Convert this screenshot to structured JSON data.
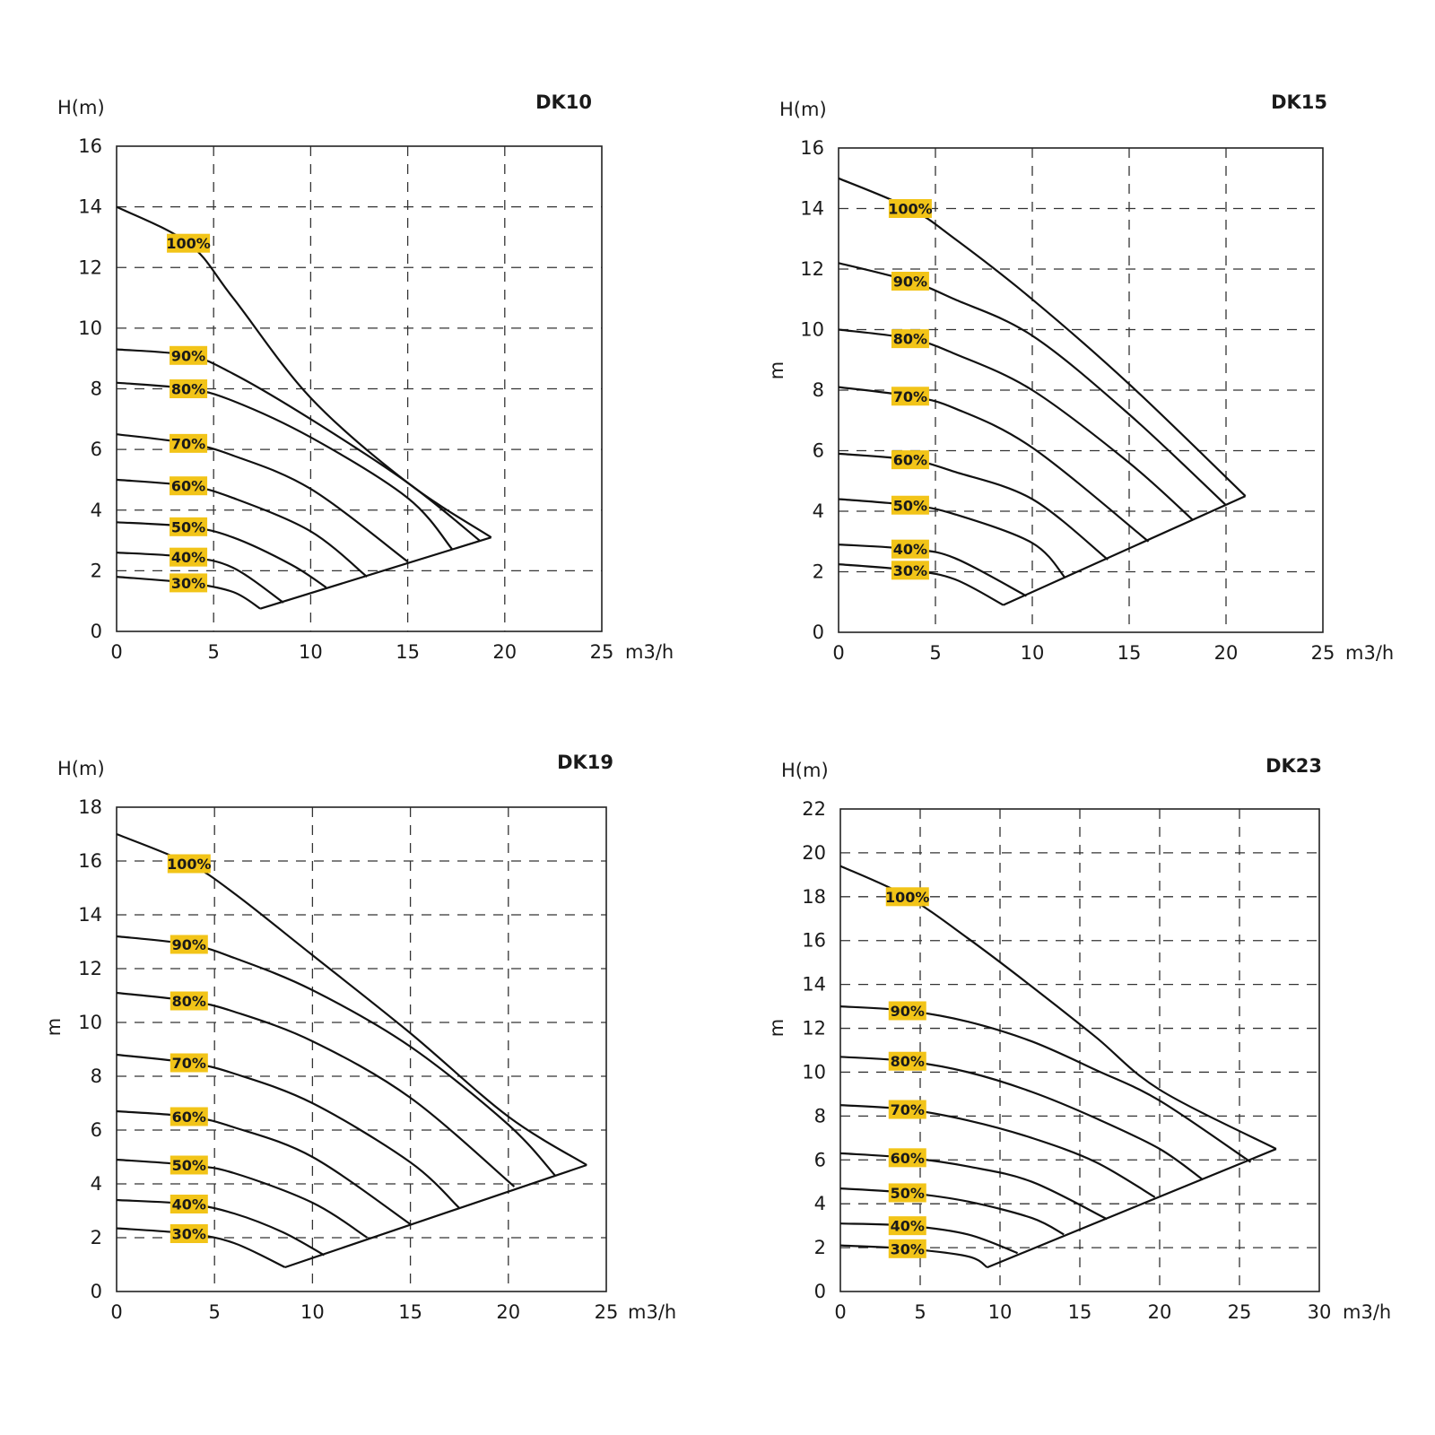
{
  "colors": {
    "badge": "#f2c418",
    "line": "#111111",
    "grid": "#333333",
    "frame": "#222222"
  },
  "chart_data": [
    {
      "type": "line",
      "title": "DK10",
      "ylabel_top": "H(m)",
      "ylabel_side": "",
      "xunit": "m3/h",
      "xlim": [
        0,
        25
      ],
      "ylim": [
        0,
        16
      ],
      "xticks": [
        "0",
        "5",
        "10",
        "15",
        "20",
        "25"
      ],
      "yticks": [
        "0",
        "2",
        "4",
        "6",
        "8",
        "10",
        "12",
        "14",
        "16"
      ],
      "grid": true,
      "series": [
        {
          "name": "100%",
          "points": [
            [
              0,
              14
            ],
            [
              3.7,
              12.8
            ],
            [
              6,
              11
            ],
            [
              10,
              7.7
            ],
            [
              15,
              4.9
            ],
            [
              19.3,
              3.1
            ]
          ]
        },
        {
          "name": "90%",
          "points": [
            [
              0,
              9.3
            ],
            [
              3.7,
              9.1
            ],
            [
              6,
              8.5
            ],
            [
              10,
              7.0
            ],
            [
              15,
              4.9
            ],
            [
              18.7,
              3.0
            ]
          ]
        },
        {
          "name": "80%",
          "points": [
            [
              0,
              8.2
            ],
            [
              3.7,
              8.0
            ],
            [
              6,
              7.6
            ],
            [
              10,
              6.4
            ],
            [
              15,
              4.4
            ],
            [
              17.3,
              2.7
            ]
          ]
        },
        {
          "name": "70%",
          "points": [
            [
              0,
              6.5
            ],
            [
              3.7,
              6.2
            ],
            [
              6,
              5.8
            ],
            [
              10,
              4.7
            ],
            [
              15,
              2.3
            ]
          ]
        },
        {
          "name": "60%",
          "points": [
            [
              0,
              5.0
            ],
            [
              3.7,
              4.8
            ],
            [
              6,
              4.4
            ],
            [
              10,
              3.3
            ],
            [
              12.9,
              1.8
            ]
          ]
        },
        {
          "name": "50%",
          "points": [
            [
              0,
              3.6
            ],
            [
              3.7,
              3.45
            ],
            [
              6,
              3.1
            ],
            [
              9,
              2.2
            ],
            [
              10.8,
              1.45
            ]
          ]
        },
        {
          "name": "40%",
          "points": [
            [
              0,
              2.6
            ],
            [
              3.7,
              2.45
            ],
            [
              6,
              2.1
            ],
            [
              8.6,
              0.95
            ]
          ]
        },
        {
          "name": "30%",
          "points": [
            [
              0,
              1.8
            ],
            [
              3.7,
              1.6
            ],
            [
              6,
              1.3
            ],
            [
              7.4,
              0.75
            ]
          ]
        }
      ],
      "boundary": [
        [
          7.4,
          0.75
        ],
        [
          19.3,
          3.1
        ]
      ]
    },
    {
      "type": "line",
      "title": "DK15",
      "ylabel_top": "H(m)",
      "ylabel_side": "m",
      "xunit": "m3/h",
      "xlim": [
        0,
        25
      ],
      "ylim": [
        0,
        16
      ],
      "xticks": [
        "0",
        "5",
        "10",
        "15",
        "20",
        "25"
      ],
      "yticks": [
        "0",
        "2",
        "4",
        "6",
        "8",
        "10",
        "12",
        "14",
        "16"
      ],
      "grid": true,
      "series": [
        {
          "name": "100%",
          "points": [
            [
              0,
              15
            ],
            [
              3.7,
              14.0
            ],
            [
              6,
              13.0
            ],
            [
              10,
              11.0
            ],
            [
              15,
              8.2
            ],
            [
              21,
              4.5
            ]
          ]
        },
        {
          "name": "90%",
          "points": [
            [
              0,
              12.2
            ],
            [
              3.7,
              11.6
            ],
            [
              6,
              11.0
            ],
            [
              10,
              9.8
            ],
            [
              15,
              7.2
            ],
            [
              20,
              4.2
            ]
          ]
        },
        {
          "name": "80%",
          "points": [
            [
              0,
              10
            ],
            [
              3.7,
              9.7
            ],
            [
              6,
              9.2
            ],
            [
              10,
              8.0
            ],
            [
              15,
              5.6
            ],
            [
              18.3,
              3.7
            ]
          ]
        },
        {
          "name": "70%",
          "points": [
            [
              0,
              8.1
            ],
            [
              3.7,
              7.8
            ],
            [
              6,
              7.4
            ],
            [
              10,
              6.1
            ],
            [
              16,
              3.0
            ]
          ]
        },
        {
          "name": "60%",
          "points": [
            [
              0,
              5.9
            ],
            [
              3.7,
              5.7
            ],
            [
              6,
              5.3
            ],
            [
              10,
              4.4
            ],
            [
              13.9,
              2.4
            ]
          ]
        },
        {
          "name": "50%",
          "points": [
            [
              0,
              4.4
            ],
            [
              3.7,
              4.2
            ],
            [
              6,
              3.9
            ],
            [
              10,
              2.95
            ],
            [
              11.7,
              1.8
            ]
          ]
        },
        {
          "name": "40%",
          "points": [
            [
              0,
              2.9
            ],
            [
              3.7,
              2.75
            ],
            [
              6,
              2.45
            ],
            [
              9.7,
              1.2
            ]
          ]
        },
        {
          "name": "30%",
          "points": [
            [
              0,
              2.25
            ],
            [
              3.7,
              2.05
            ],
            [
              6,
              1.75
            ],
            [
              8.5,
              0.9
            ]
          ]
        }
      ],
      "boundary": [
        [
          8.5,
          0.9
        ],
        [
          21,
          4.5
        ]
      ]
    },
    {
      "type": "line",
      "title": "DK19",
      "ylabel_top": "H(m)",
      "ylabel_side": "m",
      "xunit": "m3/h",
      "xlim": [
        0,
        25
      ],
      "ylim": [
        0,
        18
      ],
      "xticks": [
        "0",
        "5",
        "10",
        "15",
        "20",
        "25"
      ],
      "yticks": [
        "0",
        "2",
        "4",
        "6",
        "8",
        "10",
        "12",
        "14",
        "16",
        "18"
      ],
      "grid": true,
      "series": [
        {
          "name": "100%",
          "points": [
            [
              0,
              17
            ],
            [
              3.7,
              15.9
            ],
            [
              6,
              14.8
            ],
            [
              10,
              12.5
            ],
            [
              15,
              9.6
            ],
            [
              20,
              6.5
            ],
            [
              24,
              4.7
            ]
          ]
        },
        {
          "name": "90%",
          "points": [
            [
              0,
              13.2
            ],
            [
              3.7,
              12.9
            ],
            [
              6,
              12.4
            ],
            [
              10,
              11.2
            ],
            [
              15,
              9.1
            ],
            [
              20,
              6.2
            ],
            [
              22.4,
              4.3
            ]
          ]
        },
        {
          "name": "80%",
          "points": [
            [
              0,
              11.1
            ],
            [
              3.7,
              10.8
            ],
            [
              6,
              10.4
            ],
            [
              10,
              9.3
            ],
            [
              15,
              7.2
            ],
            [
              20.3,
              3.9
            ]
          ]
        },
        {
          "name": "70%",
          "points": [
            [
              0,
              8.8
            ],
            [
              3.7,
              8.5
            ],
            [
              6,
              8.1
            ],
            [
              10,
              7.0
            ],
            [
              15,
              4.8
            ],
            [
              17.5,
              3.1
            ]
          ]
        },
        {
          "name": "60%",
          "points": [
            [
              0,
              6.7
            ],
            [
              3.7,
              6.5
            ],
            [
              6,
              6.1
            ],
            [
              10,
              5.0
            ],
            [
              15,
              2.5
            ]
          ]
        },
        {
          "name": "50%",
          "points": [
            [
              0,
              4.9
            ],
            [
              3.7,
              4.7
            ],
            [
              6,
              4.4
            ],
            [
              10,
              3.3
            ],
            [
              12.8,
              2.0
            ]
          ]
        },
        {
          "name": "40%",
          "points": [
            [
              0,
              3.4
            ],
            [
              3.7,
              3.25
            ],
            [
              6,
              2.9
            ],
            [
              8.5,
              2.2
            ],
            [
              10.6,
              1.35
            ]
          ]
        },
        {
          "name": "30%",
          "points": [
            [
              0,
              2.35
            ],
            [
              3.7,
              2.15
            ],
            [
              6,
              1.8
            ],
            [
              8.6,
              0.9
            ]
          ]
        }
      ],
      "boundary": [
        [
          8.6,
          0.9
        ],
        [
          24,
          4.7
        ]
      ]
    },
    {
      "type": "line",
      "title": "DK23",
      "ylabel_top": "H(m)",
      "ylabel_side": "m",
      "xunit": "m3/h",
      "xlim": [
        0,
        30
      ],
      "ylim": [
        0,
        22
      ],
      "xticks": [
        "0",
        "5",
        "10",
        "15",
        "20",
        "25",
        "30"
      ],
      "yticks": [
        "0",
        "2",
        "4",
        "6",
        "8",
        "10",
        "12",
        "14",
        "16",
        "18",
        "20",
        "22"
      ],
      "grid": true,
      "series": [
        {
          "name": "100%",
          "points": [
            [
              0,
              19.4
            ],
            [
              4.2,
              18.0
            ],
            [
              8,
              16.1
            ],
            [
              12,
              13.9
            ],
            [
              16,
              11.6
            ],
            [
              20,
              9.2
            ],
            [
              27.3,
              6.5
            ]
          ]
        },
        {
          "name": "90%",
          "points": [
            [
              0,
              13
            ],
            [
              4.2,
              12.8
            ],
            [
              8,
              12.3
            ],
            [
              12,
              11.4
            ],
            [
              16,
              10.1
            ],
            [
              20,
              8.7
            ],
            [
              25.7,
              5.9
            ]
          ]
        },
        {
          "name": "80%",
          "points": [
            [
              0,
              10.7
            ],
            [
              4.2,
              10.5
            ],
            [
              8,
              10.0
            ],
            [
              12,
              9.1
            ],
            [
              16,
              7.9
            ],
            [
              20,
              6.5
            ],
            [
              22.7,
              5.1
            ]
          ]
        },
        {
          "name": "70%",
          "points": [
            [
              0,
              8.5
            ],
            [
              4.2,
              8.3
            ],
            [
              8,
              7.8
            ],
            [
              12,
              7.0
            ],
            [
              16,
              5.9
            ],
            [
              19.7,
              4.3
            ]
          ]
        },
        {
          "name": "60%",
          "points": [
            [
              0,
              6.3
            ],
            [
              4.2,
              6.1
            ],
            [
              8,
              5.7
            ],
            [
              12,
              5.0
            ],
            [
              16.7,
              3.3
            ]
          ]
        },
        {
          "name": "50%",
          "points": [
            [
              0,
              4.7
            ],
            [
              4.2,
              4.5
            ],
            [
              8,
              4.1
            ],
            [
              12,
              3.35
            ],
            [
              14,
              2.6
            ]
          ]
        },
        {
          "name": "40%",
          "points": [
            [
              0,
              3.1
            ],
            [
              4.2,
              3.0
            ],
            [
              8,
              2.6
            ],
            [
              11.1,
              1.75
            ]
          ]
        },
        {
          "name": "30%",
          "points": [
            [
              0,
              2.1
            ],
            [
              4.2,
              1.95
            ],
            [
              8,
              1.6
            ],
            [
              9.2,
              1.1
            ]
          ]
        }
      ],
      "boundary": [
        [
          9.2,
          1.1
        ],
        [
          27.3,
          6.5
        ]
      ]
    }
  ]
}
